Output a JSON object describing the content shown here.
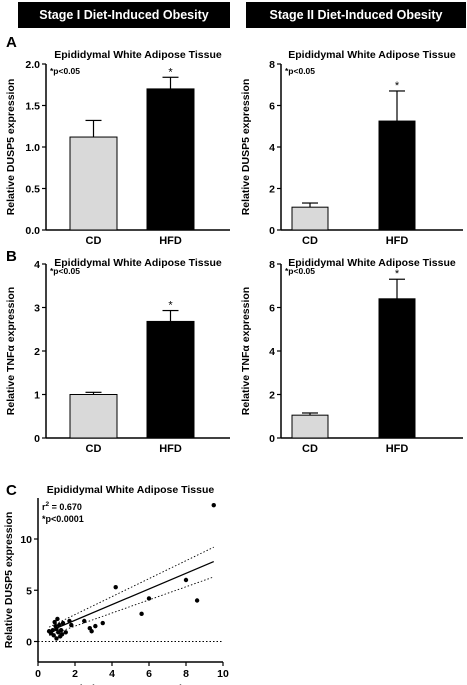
{
  "headers": {
    "stage1": "Stage I Diet-Induced Obesity",
    "stage2": "Stage II Diet-Induced Obesity"
  },
  "panels": {
    "a": "A",
    "b": "B",
    "c": "C"
  },
  "colors": {
    "cd": "#d9d9d9",
    "hfd": "#000000",
    "axis": "#000000"
  },
  "chart_data": [
    {
      "id": "a1",
      "type": "bar",
      "title": "Epididymal White Adipose Tissue",
      "ylabel": "Relative DUSP5 expression",
      "annotation": "*p<0.05",
      "categories": [
        "CD",
        "HFD"
      ],
      "values": [
        1.12,
        1.7
      ],
      "errors": [
        0.2,
        0.14
      ],
      "significance": [
        "",
        "*"
      ],
      "ylim": [
        0,
        2.0
      ],
      "yticks": [
        0,
        0.5,
        1.0,
        1.5,
        2.0
      ],
      "yticklabels": [
        "0.0",
        "0.5",
        "1.0",
        "1.5",
        "2.0"
      ]
    },
    {
      "id": "a2",
      "type": "bar",
      "title": "Epididymal White Adipose Tissue",
      "ylabel": "Relative DUSP5 expression",
      "annotation": "*p<0.05",
      "categories": [
        "CD",
        "HFD"
      ],
      "values": [
        1.1,
        5.25
      ],
      "errors": [
        0.2,
        1.45
      ],
      "significance": [
        "",
        "*"
      ],
      "ylim": [
        0,
        8
      ],
      "yticks": [
        0,
        2,
        4,
        6,
        8
      ],
      "yticklabels": [
        "0",
        "2",
        "4",
        "6",
        "8"
      ]
    },
    {
      "id": "b1",
      "type": "bar",
      "title": "Epididymal White Adipose Tissue",
      "ylabel": "Relative TNFα expression",
      "annotation": "*p<0.05",
      "categories": [
        "CD",
        "HFD"
      ],
      "values": [
        1.0,
        2.68
      ],
      "errors": [
        0.05,
        0.25
      ],
      "significance": [
        "",
        "*"
      ],
      "ylim": [
        0,
        4
      ],
      "yticks": [
        0,
        1,
        2,
        3,
        4
      ],
      "yticklabels": [
        "0",
        "1",
        "2",
        "3",
        "4"
      ]
    },
    {
      "id": "b2",
      "type": "bar",
      "title": "Epididymal White Adipose Tissue",
      "ylabel": "Relative TNFα expression",
      "annotation": "*p<0.05",
      "categories": [
        "CD",
        "HFD"
      ],
      "values": [
        1.05,
        6.4
      ],
      "errors": [
        0.1,
        0.9
      ],
      "significance": [
        "",
        "*"
      ],
      "ylim": [
        0,
        8
      ],
      "yticks": [
        0,
        2,
        4,
        6,
        8
      ],
      "yticklabels": [
        "0",
        "2",
        "4",
        "6",
        "8"
      ]
    },
    {
      "id": "c",
      "type": "scatter",
      "title": "Epididymal White Adipose Tissue",
      "xlabel": "Relative TNFα expression",
      "ylabel": "Relative DUSP5 expression",
      "annotation_r2_prefix": "r",
      "annotation_r2_exp": "2",
      "annotation_r2_value": " = 0.670",
      "annotation_p": "*p<0.0001",
      "xlim": [
        0,
        10
      ],
      "ylim": [
        -2,
        14
      ],
      "xticks": [
        0,
        2,
        4,
        6,
        8,
        10
      ],
      "yticks": [
        0,
        5,
        10
      ],
      "points": [
        [
          0.6,
          1.0
        ],
        [
          0.7,
          0.8
        ],
        [
          0.8,
          1.1
        ],
        [
          0.85,
          0.6
        ],
        [
          0.9,
          1.9
        ],
        [
          0.95,
          1.5
        ],
        [
          1.0,
          0.3
        ],
        [
          1.0,
          1.2
        ],
        [
          1.05,
          2.2
        ],
        [
          1.1,
          0.9
        ],
        [
          1.15,
          1.6
        ],
        [
          1.2,
          0.5
        ],
        [
          1.25,
          1.1
        ],
        [
          1.3,
          0.7
        ],
        [
          1.35,
          1.8
        ],
        [
          1.5,
          0.9
        ],
        [
          1.7,
          2.0
        ],
        [
          1.8,
          1.6
        ],
        [
          2.5,
          2.0
        ],
        [
          2.8,
          1.3
        ],
        [
          2.9,
          1.0
        ],
        [
          3.1,
          1.5
        ],
        [
          3.5,
          1.8
        ],
        [
          4.2,
          5.3
        ],
        [
          5.6,
          2.7
        ],
        [
          6.0,
          4.2
        ],
        [
          8.0,
          6.0
        ],
        [
          8.6,
          4.0
        ],
        [
          9.5,
          13.3
        ]
      ],
      "regression": {
        "x": [
          0.6,
          9.5
        ],
        "y": [
          1.0,
          7.8
        ]
      },
      "ci_upper": {
        "x": [
          0.6,
          9.5
        ],
        "y": [
          1.4,
          9.2
        ]
      },
      "ci_lower": {
        "x": [
          0.6,
          9.5
        ],
        "y": [
          0.6,
          6.3
        ]
      },
      "zero_line_y": 0
    }
  ]
}
